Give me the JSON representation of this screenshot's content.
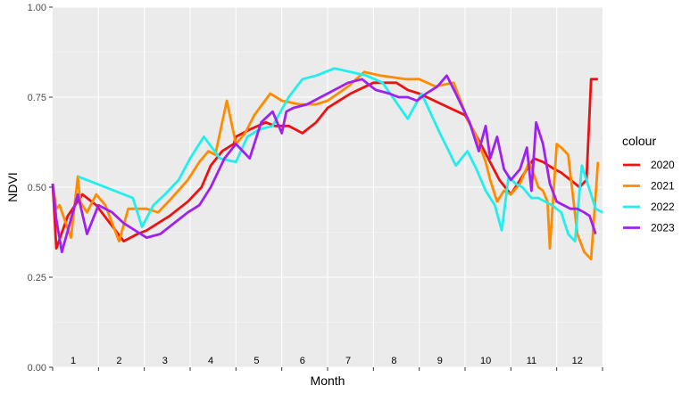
{
  "chart_data": {
    "type": "line",
    "xlabel": "Month",
    "ylabel": "NDVI",
    "ylim": [
      0,
      1
    ],
    "y_ticks": [
      "0.00",
      "0.25",
      "0.50",
      "0.75",
      "1.00"
    ],
    "y_tick_values": [
      0,
      0.25,
      0.5,
      0.75,
      1.0
    ],
    "xlim": [
      0,
      12
    ],
    "month_labels": [
      "1",
      "2",
      "3",
      "4",
      "5",
      "6",
      "7",
      "8",
      "9",
      "10",
      "11",
      "12"
    ],
    "grid": true,
    "legend": {
      "title": "colour",
      "position": "right"
    },
    "series": [
      {
        "name": "2020",
        "color": "#ee1111",
        "x": [
          0.0,
          0.08,
          0.33,
          0.65,
          0.95,
          1.25,
          1.55,
          1.85,
          2.05,
          2.55,
          2.95,
          3.25,
          3.45,
          3.7,
          3.95,
          4.0,
          4.3,
          4.65,
          4.85,
          5.15,
          5.45,
          5.75,
          6.0,
          6.5,
          7.0,
          7.5,
          7.75,
          8.0,
          8.5,
          9.0,
          9.3,
          9.75,
          10.0,
          10.2,
          10.35,
          10.5,
          10.7,
          10.95,
          11.1,
          11.3,
          11.5,
          11.65,
          11.75,
          11.9
        ],
        "y": [
          0.51,
          0.33,
          0.42,
          0.48,
          0.45,
          0.4,
          0.35,
          0.37,
          0.38,
          0.42,
          0.46,
          0.5,
          0.56,
          0.6,
          0.62,
          0.64,
          0.66,
          0.68,
          0.67,
          0.67,
          0.65,
          0.68,
          0.72,
          0.76,
          0.79,
          0.79,
          0.77,
          0.76,
          0.73,
          0.7,
          0.63,
          0.52,
          0.48,
          0.52,
          0.55,
          0.58,
          0.57,
          0.55,
          0.54,
          0.52,
          0.5,
          0.52,
          0.8,
          0.8
        ]
      },
      {
        "name": "2021",
        "color": "#ff8c00",
        "x": [
          0.0,
          0.08,
          0.15,
          0.4,
          0.55,
          0.6,
          0.75,
          0.95,
          1.15,
          1.45,
          1.65,
          1.9,
          2.05,
          2.3,
          2.6,
          2.95,
          3.2,
          3.4,
          3.55,
          3.8,
          4.0,
          4.2,
          4.4,
          4.75,
          5.0,
          5.4,
          5.75,
          6.0,
          6.45,
          6.8,
          7.15,
          7.7,
          8.0,
          8.35,
          8.75,
          9.05,
          9.25,
          9.45,
          9.55,
          9.7,
          9.85,
          10.0,
          10.2,
          10.4,
          10.6,
          10.7,
          10.8,
          10.85,
          11.0,
          11.1,
          11.25,
          11.45,
          11.6,
          11.75,
          11.9
        ],
        "y": [
          0.51,
          0.44,
          0.45,
          0.36,
          0.53,
          0.46,
          0.43,
          0.48,
          0.45,
          0.35,
          0.44,
          0.44,
          0.44,
          0.43,
          0.47,
          0.52,
          0.57,
          0.6,
          0.59,
          0.74,
          0.62,
          0.65,
          0.7,
          0.76,
          0.74,
          0.73,
          0.73,
          0.74,
          0.78,
          0.82,
          0.81,
          0.8,
          0.8,
          0.78,
          0.79,
          0.69,
          0.64,
          0.57,
          0.52,
          0.46,
          0.49,
          0.48,
          0.51,
          0.57,
          0.5,
          0.49,
          0.46,
          0.33,
          0.62,
          0.61,
          0.59,
          0.37,
          0.32,
          0.3,
          0.57
        ]
      },
      {
        "name": "2022",
        "color": "#22eeee",
        "x": [
          0.55,
          1.75,
          1.95,
          2.2,
          2.45,
          2.75,
          3.0,
          3.3,
          3.65,
          4.0,
          4.25,
          4.5,
          4.8,
          5.15,
          5.45,
          5.75,
          6.15,
          6.5,
          6.85,
          7.2,
          7.75,
          8.05,
          8.45,
          8.8,
          9.05,
          9.25,
          9.45,
          9.65,
          9.8,
          9.95,
          10.1,
          10.25,
          10.45,
          10.6,
          10.75,
          10.9,
          11.1,
          11.25,
          11.4,
          11.55,
          11.7,
          11.85,
          12.0
        ],
        "y": [
          0.53,
          0.47,
          0.39,
          0.45,
          0.48,
          0.52,
          0.58,
          0.64,
          0.58,
          0.57,
          0.64,
          0.66,
          0.67,
          0.75,
          0.8,
          0.81,
          0.83,
          0.82,
          0.81,
          0.79,
          0.69,
          0.76,
          0.65,
          0.56,
          0.6,
          0.55,
          0.49,
          0.45,
          0.38,
          0.53,
          0.51,
          0.5,
          0.47,
          0.47,
          0.46,
          0.45,
          0.43,
          0.37,
          0.35,
          0.56,
          0.5,
          0.44,
          0.43
        ]
      },
      {
        "name": "2023",
        "color": "#a020f0",
        "x": [
          0.0,
          0.08,
          0.2,
          0.55,
          0.75,
          1.0,
          1.3,
          1.55,
          1.8,
          2.05,
          2.35,
          2.65,
          2.95,
          3.2,
          3.45,
          3.75,
          4.0,
          4.3,
          4.55,
          4.8,
          5.0,
          5.1,
          5.25,
          5.55,
          5.85,
          6.15,
          6.45,
          6.75,
          7.05,
          7.35,
          7.55,
          7.75,
          7.95,
          8.15,
          8.4,
          8.6,
          8.8,
          8.95,
          9.1,
          9.3,
          9.45,
          9.55,
          9.7,
          9.85,
          10.0,
          10.2,
          10.35,
          10.45,
          10.55,
          10.7,
          10.85,
          11.0,
          11.15,
          11.3,
          11.45,
          11.6,
          11.72,
          11.85
        ],
        "y": [
          0.51,
          0.41,
          0.32,
          0.48,
          0.37,
          0.45,
          0.43,
          0.4,
          0.38,
          0.36,
          0.37,
          0.4,
          0.43,
          0.45,
          0.5,
          0.58,
          0.62,
          0.58,
          0.68,
          0.71,
          0.65,
          0.71,
          0.72,
          0.73,
          0.75,
          0.77,
          0.79,
          0.8,
          0.77,
          0.76,
          0.75,
          0.75,
          0.74,
          0.76,
          0.78,
          0.81,
          0.76,
          0.72,
          0.68,
          0.6,
          0.67,
          0.58,
          0.64,
          0.55,
          0.52,
          0.55,
          0.61,
          0.49,
          0.68,
          0.62,
          0.51,
          0.46,
          0.45,
          0.44,
          0.44,
          0.43,
          0.42,
          0.37
        ]
      }
    ]
  }
}
